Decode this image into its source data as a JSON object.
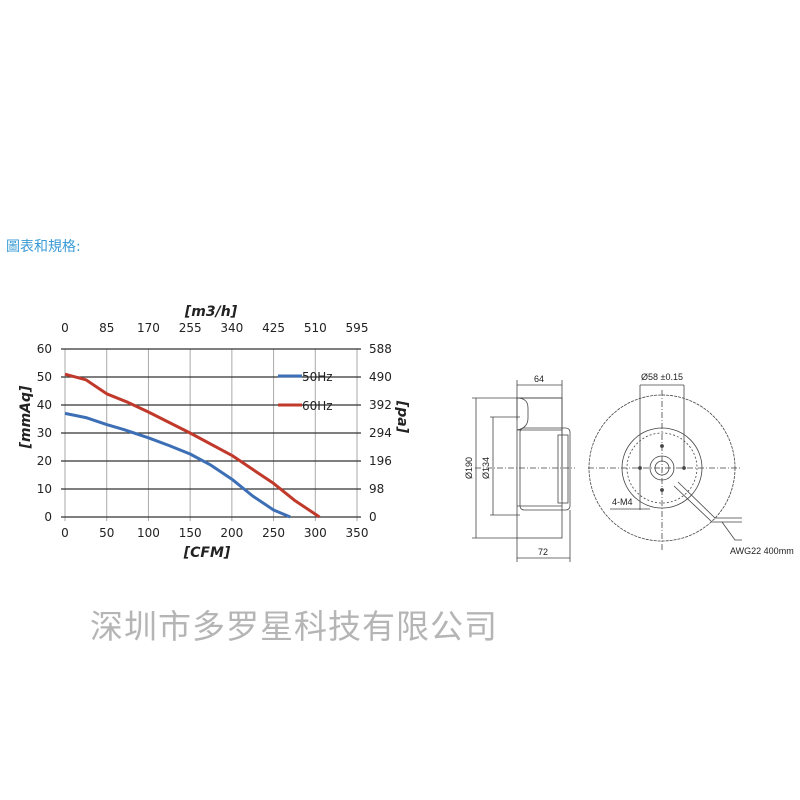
{
  "page_title": "圖表和規格:",
  "watermark": "深圳市多罗星科技有限公司",
  "chart_data": {
    "type": "line",
    "xlabel": "[CFM]",
    "x2label": "[m3/h]",
    "ylabel": "[mmAq]",
    "y2label": "[pa]",
    "xlim": [
      0,
      350
    ],
    "ylim": [
      0,
      60
    ],
    "x_ticks": [
      "0",
      "50",
      "100",
      "150",
      "200",
      "250",
      "300",
      "350"
    ],
    "x2_ticks": [
      "0",
      "85",
      "170",
      "255",
      "340",
      "425",
      "510",
      "595"
    ],
    "y_ticks": [
      "0",
      "10",
      "20",
      "30",
      "40",
      "50",
      "60"
    ],
    "y2_ticks": [
      "0",
      "98",
      "196",
      "294",
      "392",
      "490",
      "588"
    ],
    "grid": true,
    "legend": "top-right",
    "series": [
      {
        "name": "50Hz",
        "color": "#3d6fb6",
        "x": [
          0,
          25,
          50,
          70,
          100,
          125,
          150,
          175,
          200,
          225,
          250,
          270
        ],
        "y": [
          37,
          35.5,
          33,
          31.3,
          28.3,
          25.5,
          22.5,
          18.5,
          13.5,
          7.5,
          2.5,
          0
        ]
      },
      {
        "name": "60Hz",
        "color": "#c0392b",
        "x": [
          0,
          25,
          50,
          75,
          100,
          150,
          200,
          225,
          250,
          275,
          305
        ],
        "y": [
          51,
          49,
          44,
          41,
          37.5,
          30,
          22,
          17,
          12,
          6,
          0
        ]
      }
    ]
  },
  "drawing": {
    "dim_width_top": "64",
    "dim_width_bottom": "72",
    "dim_outer_dia": "Ø190",
    "dim_inner_dia": "Ø134",
    "dim_hole_pcd": "Ø58 ±0.15",
    "dim_screws": "4-M4",
    "dim_wire": "AWG22 400mm"
  }
}
